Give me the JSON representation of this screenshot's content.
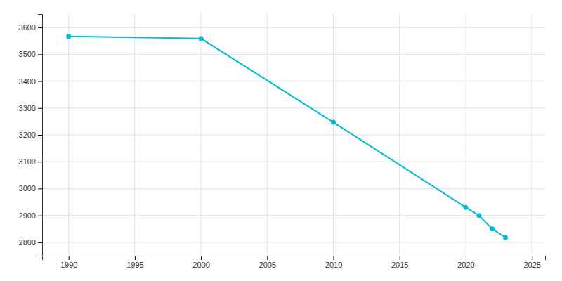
{
  "chart_data": {
    "type": "line",
    "x": [
      1990,
      2000,
      2010,
      2020,
      2021,
      2022,
      2023
    ],
    "values": [
      3567,
      3559,
      3247,
      2930,
      2900,
      2850,
      2818
    ],
    "color": "#00bcd4",
    "marker": "circle",
    "line_style": "solid",
    "xlim": [
      1988,
      2026
    ],
    "ylim": [
      2750,
      3650
    ],
    "xticks": [
      1990,
      1995,
      2000,
      2005,
      2010,
      2015,
      2020,
      2025
    ],
    "yticks": [
      2800,
      2900,
      3000,
      3100,
      3200,
      3300,
      3400,
      3500,
      3600
    ],
    "grid": true
  }
}
